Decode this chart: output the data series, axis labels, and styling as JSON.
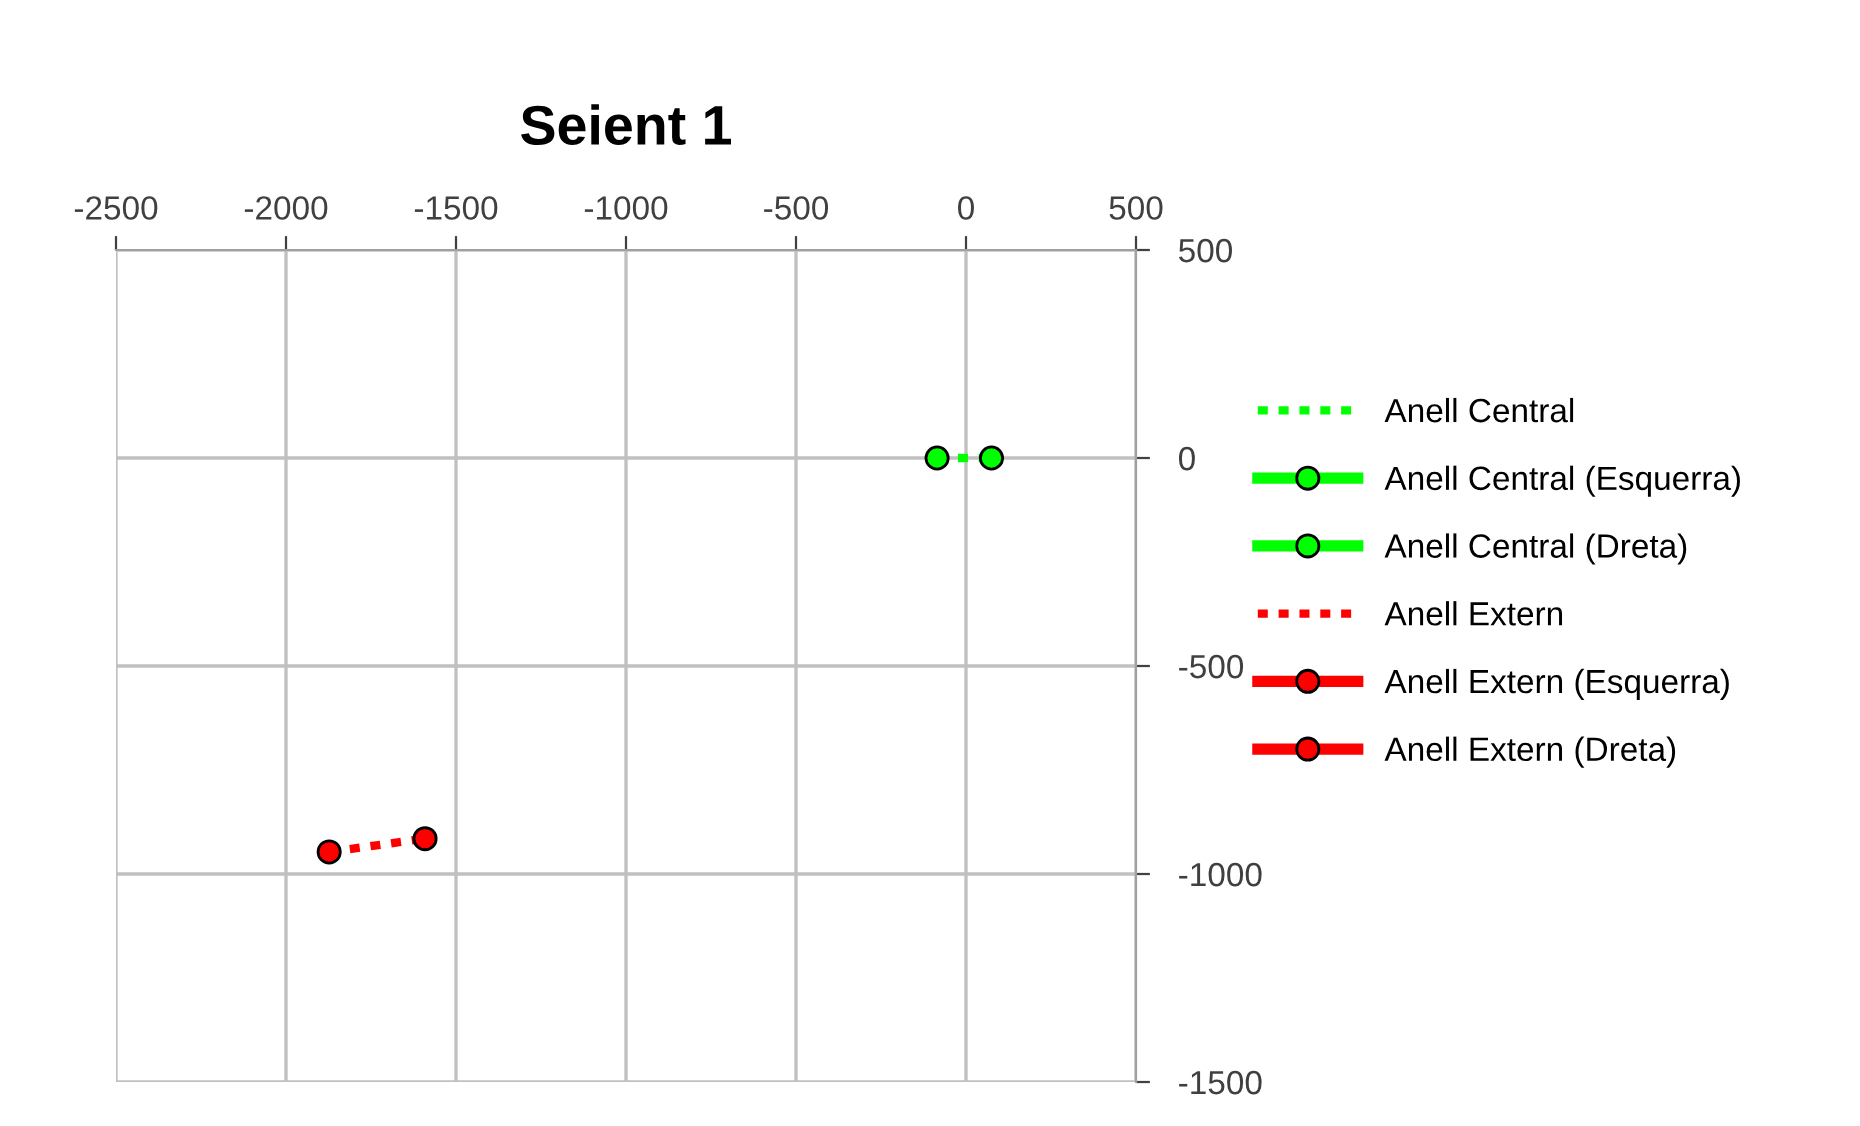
{
  "chart_data": {
    "type": "line",
    "title": "Seient 1",
    "xlim": [
      -2500,
      500
    ],
    "xticks": [
      -2500,
      -2000,
      -1500,
      -1000,
      -500,
      0,
      500
    ],
    "ylim": [
      -1500,
      500
    ],
    "yticks": [
      -1500,
      -1000,
      -500,
      0,
      500
    ],
    "grid": true,
    "legend": "right",
    "series": [
      {
        "name": "Anell Central",
        "color": "#00ff00",
        "x": [
          -85,
          75
        ],
        "values": [
          0,
          0
        ],
        "line_style": "dotted",
        "marker": "none"
      },
      {
        "name": "Anell Central (Esquerra)",
        "color": "#00ff00",
        "x": [
          -85
        ],
        "values": [
          0
        ],
        "line_style": "solid",
        "marker": "circle"
      },
      {
        "name": "Anell Central (Dreta)",
        "color": "#00ff00",
        "x": [
          75
        ],
        "values": [
          0
        ],
        "line_style": "solid",
        "marker": "circle"
      },
      {
        "name": "Anell Extern",
        "color": "#ff0000",
        "x": [
          -1873,
          -1591
        ],
        "values": [
          -947,
          -915
        ],
        "line_style": "dotted",
        "marker": "none"
      },
      {
        "name": "Anell Extern (Esquerra)",
        "color": "#ff0000",
        "x": [
          -1873
        ],
        "values": [
          -947
        ],
        "line_style": "solid",
        "marker": "circle"
      },
      {
        "name": "Anell Extern (Dreta)",
        "color": "#ff0000",
        "x": [
          -1591
        ],
        "values": [
          -915
        ],
        "line_style": "solid",
        "marker": "circle"
      }
    ]
  }
}
